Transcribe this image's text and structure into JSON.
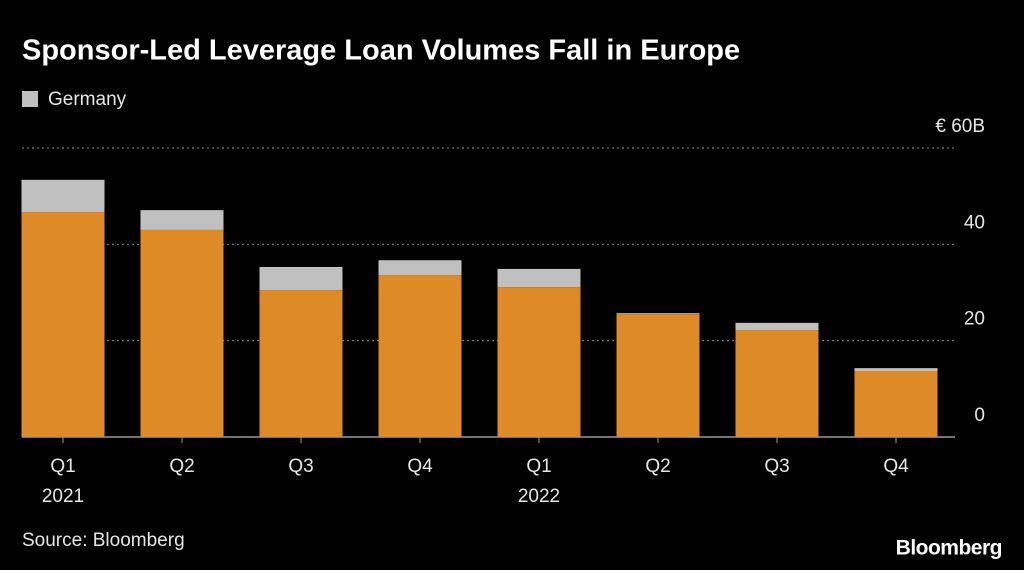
{
  "chart_data": {
    "type": "stacked_bar",
    "title": "Sponsor-Led Leverage Loan Volumes Fall in Europe",
    "categories": [
      "Q1",
      "Q2",
      "Q3",
      "Q4",
      "Q1",
      "Q2",
      "Q3",
      "Q4"
    ],
    "years": [
      "2021",
      null,
      null,
      null,
      "2022",
      null,
      null,
      null
    ],
    "series": [
      {
        "color": "#de8a26",
        "values": [
          46.7,
          43.0,
          30.5,
          33.6,
          31.1,
          25.5,
          22.2,
          13.7
        ]
      },
      {
        "name": "Germany",
        "color": "#c0c0c0",
        "values": [
          6.7,
          4.1,
          4.8,
          3.1,
          3.8,
          0.2,
          1.5,
          0.6
        ]
      }
    ],
    "ylim": [
      0,
      60
    ],
    "yticks": [
      0,
      20,
      40,
      {
        "value": 60,
        "label": "€ 60B"
      }
    ],
    "grid": true,
    "source": "Source: Bloomberg",
    "logo": "Bloomberg"
  }
}
